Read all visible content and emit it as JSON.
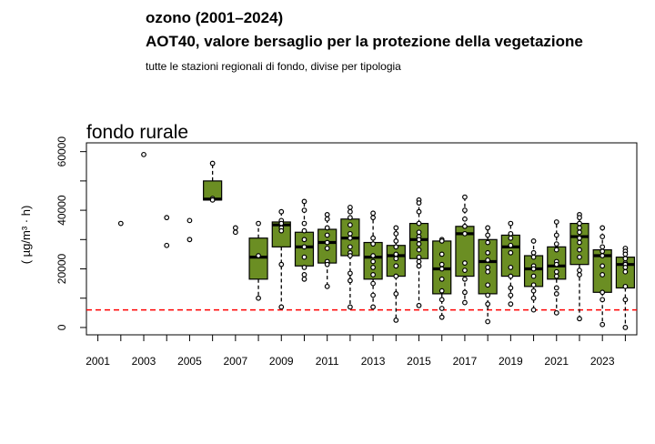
{
  "title": "ozono (2001–2024)",
  "subtitle": "AOT40, valore bersaglio per la protezione della vegetazione",
  "caption": "tutte le stazioni regionali di fondo, divise per tipologia",
  "chart_data": {
    "type": "box",
    "panel_title": "fondo rurale",
    "ylabel": "( µg/m³ · h)",
    "ylim": [
      -2500,
      63000
    ],
    "xlim": [
      2000.5,
      2024.5
    ],
    "x_tick_labels": [
      "2001",
      "2003",
      "2005",
      "2007",
      "2009",
      "2011",
      "2013",
      "2015",
      "2017",
      "2019",
      "2021",
      "2023"
    ],
    "y_tick_labels": [
      "0",
      "20000",
      "40000",
      "60000"
    ],
    "threshold": 6000,
    "colors": {
      "box_fill": "#6b8e23",
      "threshold_line": "#ff0000"
    },
    "years": [
      {
        "year": 2001,
        "points": []
      },
      {
        "year": 2002,
        "points": [
          35500
        ]
      },
      {
        "year": 2003,
        "points": [
          59000
        ]
      },
      {
        "year": 2004,
        "points": [
          37500,
          28000
        ]
      },
      {
        "year": 2005,
        "points": [
          36500,
          30000
        ]
      },
      {
        "year": 2006,
        "points": [
          56000,
          44000,
          43500
        ],
        "box": {
          "q1": 43500,
          "median": 43800,
          "q3": 50000,
          "lo": 43500,
          "hi": 56000
        }
      },
      {
        "year": 2007,
        "points": [
          34000,
          32500
        ]
      },
      {
        "year": 2008,
        "points": [
          35500,
          24500,
          10000
        ],
        "box": {
          "q1": 16500,
          "median": 24000,
          "q3": 30500,
          "lo": 10000,
          "hi": 35500
        }
      },
      {
        "year": 2009,
        "points": [
          39500,
          36500,
          35500,
          34000,
          33000,
          21500,
          7000
        ],
        "box": {
          "q1": 27500,
          "median": 35000,
          "q3": 36000,
          "lo": 7000,
          "hi": 39500
        }
      },
      {
        "year": 2010,
        "points": [
          43000,
          40000,
          35500,
          33000,
          30000,
          27500,
          24000,
          20500,
          18000,
          16500
        ],
        "box": {
          "q1": 21000,
          "median": 27500,
          "q3": 32500,
          "lo": 16500,
          "hi": 43000
        }
      },
      {
        "year": 2011,
        "points": [
          38500,
          37000,
          34000,
          31500,
          29000,
          27000,
          22500,
          21500,
          14000
        ],
        "box": {
          "q1": 22000,
          "median": 29000,
          "q3": 33500,
          "lo": 14000,
          "hi": 38500
        }
      },
      {
        "year": 2012,
        "points": [
          41000,
          39500,
          37500,
          35000,
          32000,
          30500,
          27500,
          25500,
          24500,
          18500,
          16000,
          7000
        ],
        "box": {
          "q1": 24500,
          "median": 30500,
          "q3": 37000,
          "lo": 7000,
          "hi": 41000
        }
      },
      {
        "year": 2013,
        "points": [
          39000,
          37500,
          30500,
          28500,
          24500,
          22500,
          20500,
          18000,
          15000,
          11000,
          7000
        ],
        "box": {
          "q1": 16500,
          "median": 24000,
          "q3": 29000,
          "lo": 7000,
          "hi": 39000
        }
      },
      {
        "year": 2014,
        "points": [
          34000,
          32000,
          29500,
          27500,
          25000,
          23500,
          21000,
          17500,
          11500,
          2500
        ],
        "box": {
          "q1": 17500,
          "median": 24500,
          "q3": 28000,
          "lo": 2500,
          "hi": 34000
        }
      },
      {
        "year": 2015,
        "points": [
          43500,
          42500,
          39500,
          35500,
          32500,
          31000,
          30000,
          28500,
          26500,
          24000,
          22500,
          21000,
          7500
        ],
        "box": {
          "q1": 23500,
          "median": 30000,
          "q3": 35500,
          "lo": 7500,
          "hi": 43500
        }
      },
      {
        "year": 2016,
        "points": [
          30000,
          29500,
          25000,
          21500,
          20000,
          16500,
          12500,
          9500,
          6500,
          3500
        ],
        "box": {
          "q1": 11500,
          "median": 20000,
          "q3": 29500,
          "lo": 3500,
          "hi": 30000
        }
      },
      {
        "year": 2017,
        "points": [
          44500,
          40000,
          37000,
          34500,
          32000,
          22000,
          19500,
          16500,
          12000,
          8500
        ],
        "box": {
          "q1": 17500,
          "median": 32000,
          "q3": 34500,
          "lo": 8500,
          "hi": 44500
        }
      },
      {
        "year": 2018,
        "points": [
          34000,
          31500,
          29000,
          25500,
          23000,
          20500,
          19000,
          14500,
          11000,
          8000,
          2000
        ],
        "box": {
          "q1": 11500,
          "median": 22500,
          "q3": 30000,
          "lo": 2000,
          "hi": 34000
        }
      },
      {
        "year": 2019,
        "points": [
          35500,
          32000,
          30500,
          28000,
          25500,
          20500,
          17500,
          13500,
          11000,
          8000
        ],
        "box": {
          "q1": 17500,
          "median": 27500,
          "q3": 31500,
          "lo": 8000,
          "hi": 35500
        }
      },
      {
        "year": 2020,
        "points": [
          29500,
          25500,
          24000,
          21000,
          20000,
          17500,
          14500,
          12500,
          10000,
          6000
        ],
        "box": {
          "q1": 14000,
          "median": 20000,
          "q3": 24500,
          "lo": 6000,
          "hi": 29500
        }
      },
      {
        "year": 2021,
        "points": [
          36000,
          31500,
          28500,
          26500,
          22500,
          21500,
          19000,
          17500,
          13500,
          11500,
          5000
        ],
        "box": {
          "q1": 16500,
          "median": 21000,
          "q3": 27500,
          "lo": 5000,
          "hi": 36000
        }
      },
      {
        "year": 2022,
        "points": [
          38500,
          37500,
          35500,
          34000,
          32500,
          30500,
          29000,
          26500,
          24000,
          19500,
          18000,
          3000
        ],
        "box": {
          "q1": 21500,
          "median": 31000,
          "q3": 35500,
          "lo": 3000,
          "hi": 38500
        }
      },
      {
        "year": 2023,
        "points": [
          34000,
          31000,
          27500,
          26000,
          24500,
          21000,
          18000,
          12000,
          9500,
          1000
        ],
        "box": {
          "q1": 12000,
          "median": 24500,
          "q3": 26500,
          "lo": 1000,
          "hi": 34000
        }
      },
      {
        "year": 2024,
        "points": [
          27000,
          26000,
          25000,
          23500,
          22000,
          21500,
          20500,
          19000,
          14000,
          9500,
          0
        ],
        "box": {
          "q1": 13500,
          "median": 21500,
          "q3": 24000,
          "lo": 0,
          "hi": 27000
        }
      }
    ]
  }
}
